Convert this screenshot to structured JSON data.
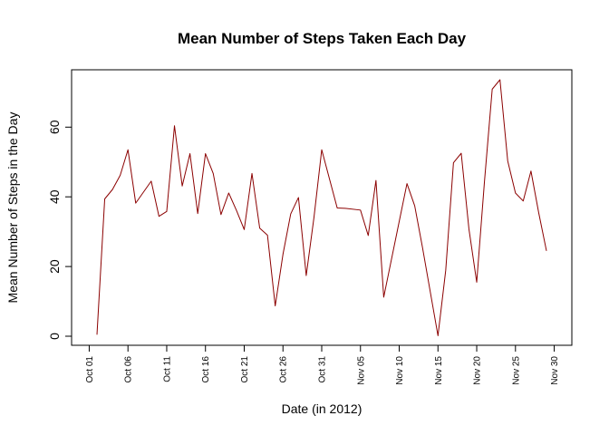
{
  "chart_data": {
    "type": "line",
    "title": "Mean Number of Steps Taken Each Day",
    "xlabel": "Date (in 2012)",
    "ylabel": "Mean Number of Steps in the Day",
    "line_color": "#8b0000",
    "grid": false,
    "ylim": [
      0,
      73.6
    ],
    "y_ticks": [
      0,
      20,
      40,
      60
    ],
    "x_tick_labels": [
      {
        "date": "2012-10-01",
        "label": "Oct 01"
      },
      {
        "date": "2012-10-06",
        "label": "Oct 06"
      },
      {
        "date": "2012-10-11",
        "label": "Oct 11"
      },
      {
        "date": "2012-10-16",
        "label": "Oct 16"
      },
      {
        "date": "2012-10-21",
        "label": "Oct 21"
      },
      {
        "date": "2012-10-26",
        "label": "Oct 26"
      },
      {
        "date": "2012-10-31",
        "label": "Oct 31"
      },
      {
        "date": "2012-11-05",
        "label": "Nov 05"
      },
      {
        "date": "2012-11-10",
        "label": "Nov 10"
      },
      {
        "date": "2012-11-15",
        "label": "Nov 15"
      },
      {
        "date": "2012-11-20",
        "label": "Nov 20"
      },
      {
        "date": "2012-11-25",
        "label": "Nov 25"
      },
      {
        "date": "2012-11-30",
        "label": "Nov 30"
      }
    ],
    "xlim": [
      "2012-10-02",
      "2012-11-29"
    ],
    "series": [
      {
        "x": [
          "2012-10-02",
          "2012-10-03",
          "2012-10-04",
          "2012-10-05",
          "2012-10-06",
          "2012-10-07",
          "2012-10-09",
          "2012-10-10",
          "2012-10-11",
          "2012-10-12",
          "2012-10-13",
          "2012-10-14",
          "2012-10-15",
          "2012-10-16",
          "2012-10-17",
          "2012-10-18",
          "2012-10-19",
          "2012-10-20",
          "2012-10-21",
          "2012-10-22",
          "2012-10-23",
          "2012-10-24",
          "2012-10-25",
          "2012-10-26",
          "2012-10-27",
          "2012-10-28",
          "2012-10-29",
          "2012-10-30",
          "2012-10-31",
          "2012-11-02",
          "2012-11-03",
          "2012-11-05",
          "2012-11-06",
          "2012-11-07",
          "2012-11-08",
          "2012-11-11",
          "2012-11-12",
          "2012-11-13",
          "2012-11-15",
          "2012-11-16",
          "2012-11-17",
          "2012-11-18",
          "2012-11-19",
          "2012-11-20",
          "2012-11-21",
          "2012-11-22",
          "2012-11-23",
          "2012-11-24",
          "2012-11-25",
          "2012-11-26",
          "2012-11-27",
          "2012-11-28",
          "2012-11-29"
        ],
        "values": [
          0.44,
          39.4,
          42.1,
          46.2,
          53.5,
          38.2,
          44.5,
          34.4,
          35.8,
          60.4,
          43.1,
          52.4,
          35.2,
          52.4,
          46.7,
          34.9,
          41.1,
          36.1,
          30.6,
          46.7,
          31.0,
          29.0,
          8.7,
          23.5,
          35.1,
          39.8,
          17.4,
          34.1,
          53.5,
          36.8,
          36.7,
          36.2,
          28.9,
          44.7,
          11.2,
          43.8,
          37.4,
          25.5,
          0.14,
          18.9,
          49.8,
          52.5,
          30.7,
          15.5,
          44.4,
          70.9,
          73.6,
          50.3,
          41.1,
          38.8,
          47.4,
          35.4,
          24.5
        ]
      }
    ]
  }
}
